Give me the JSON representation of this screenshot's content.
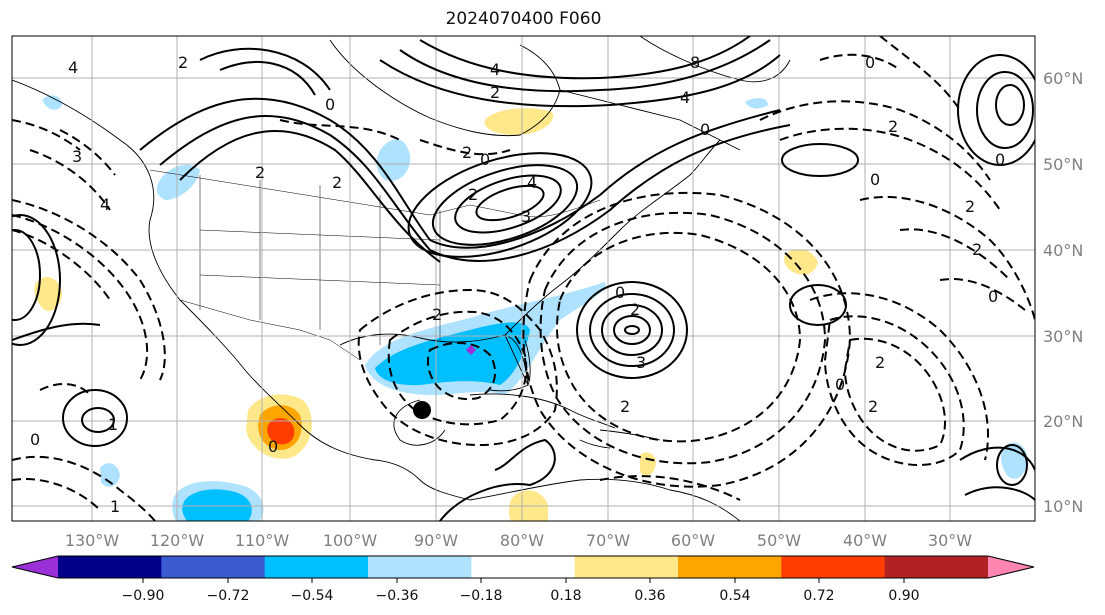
{
  "title": "2024070400 F060",
  "lon_labels": [
    "130°W",
    "120°W",
    "110°W",
    "100°W",
    "90°W",
    "80°W",
    "70°W",
    "60°W",
    "50°W",
    "40°W",
    "30°W"
  ],
  "lat_labels": [
    "60°N",
    "50°N",
    "40°N",
    "30°N",
    "20°N",
    "10°N"
  ],
  "colorbar": {
    "tick_labels": [
      "−0.90",
      "−0.72",
      "−0.54",
      "−0.36",
      "−0.18",
      "0.18",
      "0.36",
      "0.54",
      "0.72",
      "0.90"
    ],
    "colors": [
      "#9b30d9",
      "#00008b",
      "#3a5bd0",
      "#00bfff",
      "#aee2ff",
      "#ffffff",
      "#ffe88a",
      "#ffa500",
      "#ff3d00",
      "#b22222",
      "#ff85b1"
    ]
  },
  "contour_labels": [
    "4",
    "2",
    "2",
    "3",
    "2",
    "0",
    "4",
    "8",
    "4",
    "2",
    "2",
    "0",
    "2",
    "4",
    "4",
    "3",
    "0",
    "0",
    "2",
    "2",
    "0",
    "2",
    "2",
    "3",
    "2",
    "0",
    "2",
    "1",
    "0",
    "1",
    "0",
    "0",
    "0",
    "2",
    "2",
    "0"
  ],
  "storm_marker": "black-dot"
}
